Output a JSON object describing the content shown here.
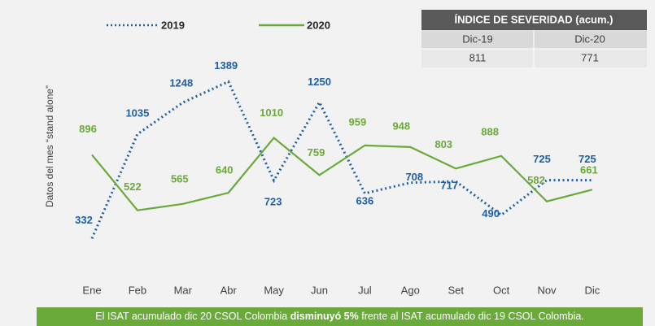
{
  "chart_data": {
    "type": "line",
    "y_label": "Datos del mes “stand alone”",
    "categories": [
      "Ene",
      "Feb",
      "Mar",
      "Abr",
      "May",
      "Jun",
      "Jul",
      "Ago",
      "Set",
      "Oct",
      "Nov",
      "Dic"
    ],
    "series": [
      {
        "name": "2019",
        "color": "#1f5fa6",
        "style": "dotted",
        "values": [
          332,
          1035,
          1248,
          1389,
          723,
          1250,
          636,
          708,
          717,
          490,
          725,
          725
        ]
      },
      {
        "name": "2020",
        "color": "#6aaa3a",
        "style": "solid",
        "values": [
          896,
          522,
          565,
          640,
          1010,
          759,
          959,
          948,
          803,
          888,
          582,
          661
        ]
      }
    ]
  },
  "table": {
    "title": "ÍNDICE DE SEVERIDAD (acum.)",
    "header": [
      "Dic-19",
      "Dic-20"
    ],
    "row": [
      "811",
      "771"
    ]
  },
  "footer": {
    "before": "El ISAT acumulado dic 20 CSOL Colombia ",
    "bold": "disminuyó 5%",
    "after": " frente al ISAT acumulado dic 19 CSOL Colombia."
  }
}
